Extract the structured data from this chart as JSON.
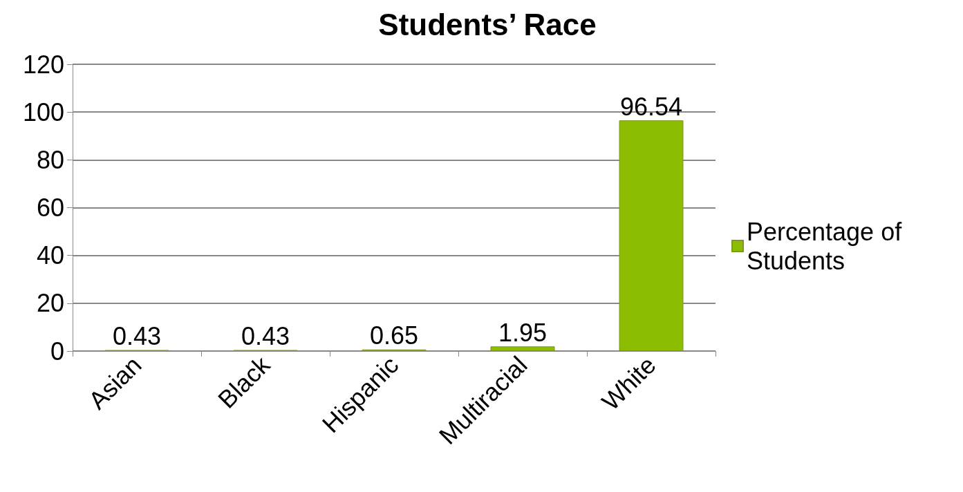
{
  "chart_data": {
    "type": "bar",
    "title": "Students’ Race",
    "categories": [
      "Asian",
      "Black",
      "Hispanic",
      "Multiracial",
      "White"
    ],
    "series": [
      {
        "name": "Percentage of Students",
        "color": "#8cbd00",
        "values": [
          0.43,
          0.43,
          0.65,
          1.95,
          96.54
        ]
      }
    ],
    "ylim": [
      0,
      120
    ],
    "yticks": [
      0,
      20,
      40,
      60,
      80,
      100,
      120
    ],
    "grid": "y",
    "legend": "right",
    "data_labels": true
  }
}
